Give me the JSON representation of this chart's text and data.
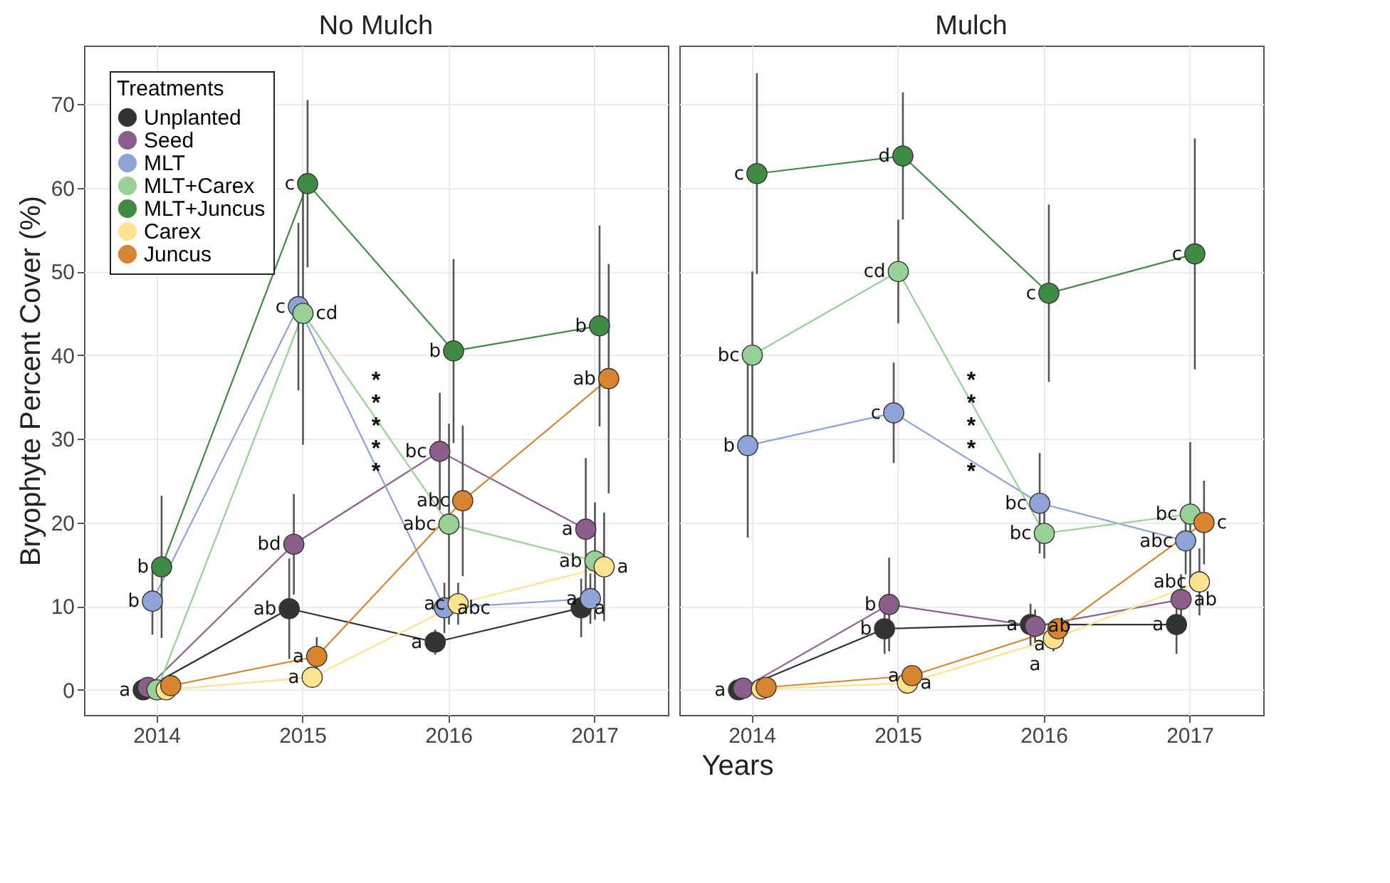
{
  "chart_data": [
    {
      "type": "line",
      "title": "No Mulch",
      "ylabel": "Bryophyte Percent Cover (%)",
      "xlabel": "Years",
      "legend_title": "Treatments",
      "legend": "top left",
      "grid": true,
      "marker": "circle",
      "categories": [
        "2014",
        "2015",
        "2016",
        "2017"
      ],
      "ylim": [
        -3,
        77
      ],
      "yticks": [
        0,
        10,
        20,
        30,
        40,
        50,
        60,
        70
      ],
      "series": [
        {
          "name": "Unplanted",
          "color": "#333333",
          "values": [
            0,
            9.7,
            5.7,
            9.8
          ],
          "errors": [
            null,
            6,
            1.5,
            3.5
          ],
          "value_labels": [
            "a",
            "ab",
            "a",
            "a"
          ]
        },
        {
          "name": "Seed",
          "color": "#8c5e8c",
          "values": [
            0.3,
            17.4,
            28.5,
            19.2
          ],
          "errors": [
            null,
            6,
            7,
            8.5
          ],
          "value_labels": [
            null,
            "bd",
            "bc",
            "a"
          ]
        },
        {
          "name": "MLT",
          "color": "#8fa3d6",
          "values": [
            10.6,
            45.8,
            9.8,
            10.9
          ],
          "errors": [
            4,
            10,
            3,
            3
          ],
          "value_labels": [
            "b",
            "c",
            "abc",
            "a"
          ]
        },
        {
          "name": "MLT+Carex",
          "color": "#98d196",
          "values": [
            0,
            45,
            19.8,
            15.4
          ],
          "errors": [
            null,
            15.7,
            12,
            7
          ],
          "value_labels": [
            null,
            "cd",
            "abc",
            "ab"
          ]
        },
        {
          "name": "MLT+Juncus",
          "color": "#3f8a45",
          "values": [
            14.7,
            60.5,
            40.5,
            43.5
          ],
          "errors": [
            8.5,
            10,
            11,
            12
          ],
          "value_labels": [
            "b",
            "c",
            "b",
            "b"
          ]
        },
        {
          "name": "Carex",
          "color": "#fde28f",
          "values": [
            0,
            1.5,
            10.3,
            14.7
          ],
          "errors": [
            null,
            null,
            2.5,
            6.5
          ],
          "value_labels": [
            null,
            "a",
            "ac",
            "a"
          ]
        },
        {
          "name": "Juncus",
          "color": "#d98530",
          "values": [
            0.5,
            4,
            22.6,
            37.2
          ],
          "errors": [
            null,
            2.3,
            9,
            13.7
          ],
          "value_labels": [
            null,
            "a",
            "abc",
            "ab"
          ]
        }
      ],
      "annotations": [
        "*",
        "*",
        "*",
        "*",
        "*"
      ]
    },
    {
      "type": "line",
      "title": "Mulch",
      "grid": true,
      "marker": "circle",
      "tick_labels": "x",
      "categories": [
        "2014",
        "2015",
        "2016",
        "2017"
      ],
      "ylim": [
        -3,
        77
      ],
      "yticks": [
        0,
        10,
        20,
        30,
        40,
        50,
        60,
        70
      ],
      "series": [
        {
          "color": "#333333",
          "values": [
            0,
            7.3,
            7.8,
            7.8
          ],
          "errors": [
            null,
            3,
            2.5,
            3.5
          ],
          "value_labels": [
            "a",
            "b",
            "a",
            "a"
          ]
        },
        {
          "color": "#8c5e8c",
          "values": [
            0.2,
            10.2,
            7.6,
            10.8
          ],
          "errors": [
            null,
            5.6,
            2,
            3
          ],
          "value_labels": [
            null,
            "b",
            "ab",
            "ab"
          ]
        },
        {
          "color": "#8fa3d6",
          "values": [
            29.2,
            33.1,
            22.3,
            17.8
          ],
          "errors": [
            11,
            6,
            6,
            4
          ],
          "value_labels": [
            "b",
            "c",
            "bc",
            "abc"
          ]
        },
        {
          "color": "#98d196",
          "values": [
            40,
            50,
            18.7,
            21
          ],
          "errors": [
            10,
            6.2,
            3,
            8.6
          ],
          "value_labels": [
            "bc",
            "cd",
            "bc",
            "bc"
          ]
        },
        {
          "color": "#3f8a45",
          "values": [
            61.7,
            63.8,
            47.4,
            52.1
          ],
          "errors": [
            12,
            7.6,
            10.6,
            13.8
          ],
          "value_labels": [
            "c",
            "d",
            "c",
            "c"
          ]
        },
        {
          "color": "#fde28f",
          "values": [
            0.1,
            0.8,
            6.1,
            12.9
          ],
          "errors": [
            null,
            null,
            1.5,
            4
          ],
          "value_labels": [
            null,
            "a",
            "a",
            "abc"
          ]
        },
        {
          "color": "#d98530",
          "values": [
            0.3,
            1.7,
            7.3,
            20
          ],
          "errors": [
            null,
            null,
            null,
            5
          ],
          "value_labels": [
            null,
            "a",
            "a",
            "c"
          ]
        }
      ],
      "annotations": [
        "*",
        "*",
        "*",
        "*",
        "*"
      ]
    }
  ]
}
